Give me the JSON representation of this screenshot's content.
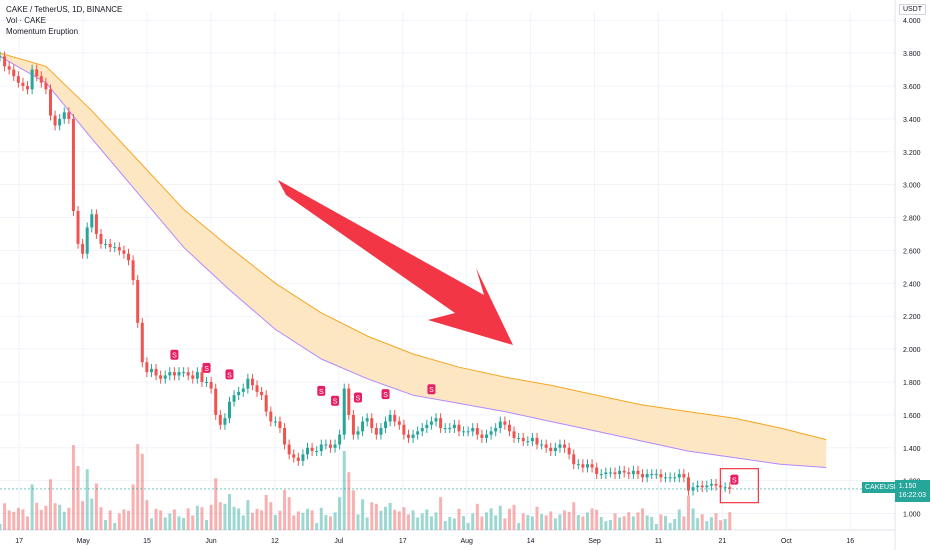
{
  "header": {
    "symbol_line": "CAKE / TetherUS, 1D, BINANCE",
    "vol_line": "Vol · CAKE",
    "indicator_line": "Momentum Eruption"
  },
  "axis": {
    "currency": "USDT",
    "y_ticks": [
      "4.000",
      "3.800",
      "3.600",
      "3.400",
      "3.200",
      "3.000",
      "2.800",
      "2.600",
      "2.400",
      "2.200",
      "2.000",
      "1.800",
      "1.600",
      "1.400",
      "1.200",
      "1.000"
    ],
    "x_ticks": [
      "17",
      "May",
      "15",
      "Jun",
      "12",
      "Jul",
      "17",
      "Aug",
      "14",
      "Sep",
      "11",
      "21",
      "Oct",
      "16"
    ]
  },
  "last_price": {
    "symbol": "CAKEUSDT",
    "price": "1.150",
    "countdown": "16:22:03"
  },
  "signal_label": "S",
  "colors": {
    "up": "#26a69a",
    "down": "#ef5350",
    "band_fill": "#fde3b8",
    "band_upper": "#f5a623",
    "band_lower": "#b388ff",
    "arrow": "#f23645",
    "signal": "#e91e63"
  },
  "chart_data": {
    "type": "candlestick",
    "ylim": [
      0.9,
      4.05
    ],
    "x_range_days": [
      0,
      195
    ],
    "candles_close": [
      3.78,
      3.72,
      3.7,
      3.66,
      3.62,
      3.6,
      3.58,
      3.7,
      3.66,
      3.62,
      3.58,
      3.42,
      3.36,
      3.4,
      3.44,
      3.4,
      2.84,
      2.64,
      2.58,
      2.74,
      2.82,
      2.7,
      2.64,
      2.64,
      2.62,
      2.62,
      2.6,
      2.58,
      2.54,
      2.42,
      2.16,
      1.92,
      1.86,
      1.88,
      1.84,
      1.82,
      1.84,
      1.86,
      1.84,
      1.86,
      1.86,
      1.84,
      1.82,
      1.86,
      1.8,
      1.8,
      1.76,
      1.6,
      1.54,
      1.58,
      1.68,
      1.72,
      1.74,
      1.76,
      1.82,
      1.78,
      1.74,
      1.72,
      1.62,
      1.56,
      1.56,
      1.52,
      1.42,
      1.36,
      1.34,
      1.32,
      1.36,
      1.4,
      1.38,
      1.38,
      1.42,
      1.42,
      1.4,
      1.42,
      1.48,
      1.76,
      1.6,
      1.48,
      1.5,
      1.56,
      1.58,
      1.52,
      1.48,
      1.52,
      1.56,
      1.6,
      1.56,
      1.54,
      1.48,
      1.46,
      1.48,
      1.5,
      1.52,
      1.54,
      1.56,
      1.58,
      1.52,
      1.52,
      1.52,
      1.54,
      1.5,
      1.5,
      1.5,
      1.52,
      1.48,
      1.46,
      1.48,
      1.5,
      1.52,
      1.56,
      1.54,
      1.5,
      1.46,
      1.46,
      1.44,
      1.44,
      1.46,
      1.42,
      1.42,
      1.4,
      1.38,
      1.4,
      1.42,
      1.4,
      1.36,
      1.3,
      1.3,
      1.28,
      1.3,
      1.28,
      1.24,
      1.24,
      1.25,
      1.25,
      1.24,
      1.26,
      1.25,
      1.24,
      1.26,
      1.24,
      1.22,
      1.24,
      1.24,
      1.24,
      1.22,
      1.22,
      1.22,
      1.22,
      1.24,
      1.22,
      1.14,
      1.16,
      1.17,
      1.16,
      1.17,
      1.18,
      1.17,
      1.16,
      1.16,
      1.15
    ],
    "candle_step_days": 1,
    "band_upper": [
      [
        0,
        3.8
      ],
      [
        10,
        3.72
      ],
      [
        20,
        3.45
      ],
      [
        30,
        3.15
      ],
      [
        40,
        2.85
      ],
      [
        50,
        2.62
      ],
      [
        60,
        2.4
      ],
      [
        70,
        2.22
      ],
      [
        80,
        2.08
      ],
      [
        90,
        1.97
      ],
      [
        100,
        1.89
      ],
      [
        110,
        1.83
      ],
      [
        120,
        1.78
      ],
      [
        130,
        1.72
      ],
      [
        140,
        1.66
      ],
      [
        150,
        1.62
      ],
      [
        160,
        1.58
      ],
      [
        170,
        1.52
      ],
      [
        180,
        1.45
      ]
    ],
    "band_lower": [
      [
        0,
        3.78
      ],
      [
        10,
        3.62
      ],
      [
        20,
        3.28
      ],
      [
        30,
        2.95
      ],
      [
        40,
        2.62
      ],
      [
        50,
        2.36
      ],
      [
        60,
        2.12
      ],
      [
        70,
        1.94
      ],
      [
        80,
        1.82
      ],
      [
        90,
        1.72
      ],
      [
        100,
        1.67
      ],
      [
        110,
        1.62
      ],
      [
        120,
        1.56
      ],
      [
        130,
        1.5
      ],
      [
        140,
        1.44
      ],
      [
        150,
        1.38
      ],
      [
        160,
        1.34
      ],
      [
        170,
        1.3
      ],
      [
        180,
        1.28
      ]
    ],
    "signals": [
      [
        38,
        1.96
      ],
      [
        45,
        1.88
      ],
      [
        50,
        1.84
      ],
      [
        70,
        1.74
      ],
      [
        73,
        1.68
      ],
      [
        78,
        1.7
      ],
      [
        84,
        1.72
      ],
      [
        94,
        1.75
      ],
      [
        160,
        1.2
      ]
    ]
  }
}
